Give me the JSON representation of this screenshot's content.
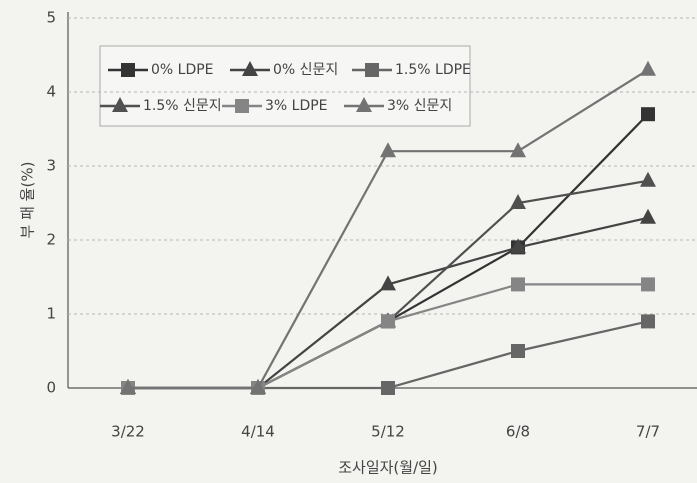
{
  "chart_data": {
    "type": "line",
    "x_label": "조사일자(월/일)",
    "y_label": "부 패 율(%)",
    "categories": [
      "3/22",
      "4/14",
      "5/12",
      "6/8",
      "7/7"
    ],
    "ylim": [
      0,
      5
    ],
    "yticks": [
      0,
      1,
      2,
      3,
      4,
      5
    ],
    "grid": true,
    "legend": "upper left",
    "series": [
      {
        "name": "0% LDPE",
        "color": "#333333",
        "marker": "square",
        "values": [
          0,
          0,
          0.9,
          1.9,
          3.7
        ]
      },
      {
        "name": "0% 신문지",
        "color": "#444444",
        "marker": "triangle",
        "values": [
          0,
          0,
          1.4,
          1.9,
          2.3
        ]
      },
      {
        "name": "1.5% LDPE",
        "color": "#666666",
        "marker": "square",
        "values": [
          0,
          0,
          0,
          0.5,
          0.9
        ]
      },
      {
        "name": "1.5% 신문지",
        "color": "#505050",
        "marker": "triangle",
        "values": [
          0,
          0,
          0.9,
          2.5,
          2.8
        ]
      },
      {
        "name": "3% LDPE",
        "color": "#858585",
        "marker": "square",
        "values": [
          0,
          0,
          0.9,
          1.4,
          1.4
        ]
      },
      {
        "name": "3% 신문지",
        "color": "#737373",
        "marker": "triangle",
        "values": [
          0,
          0,
          3.2,
          3.2,
          4.3
        ]
      }
    ]
  }
}
